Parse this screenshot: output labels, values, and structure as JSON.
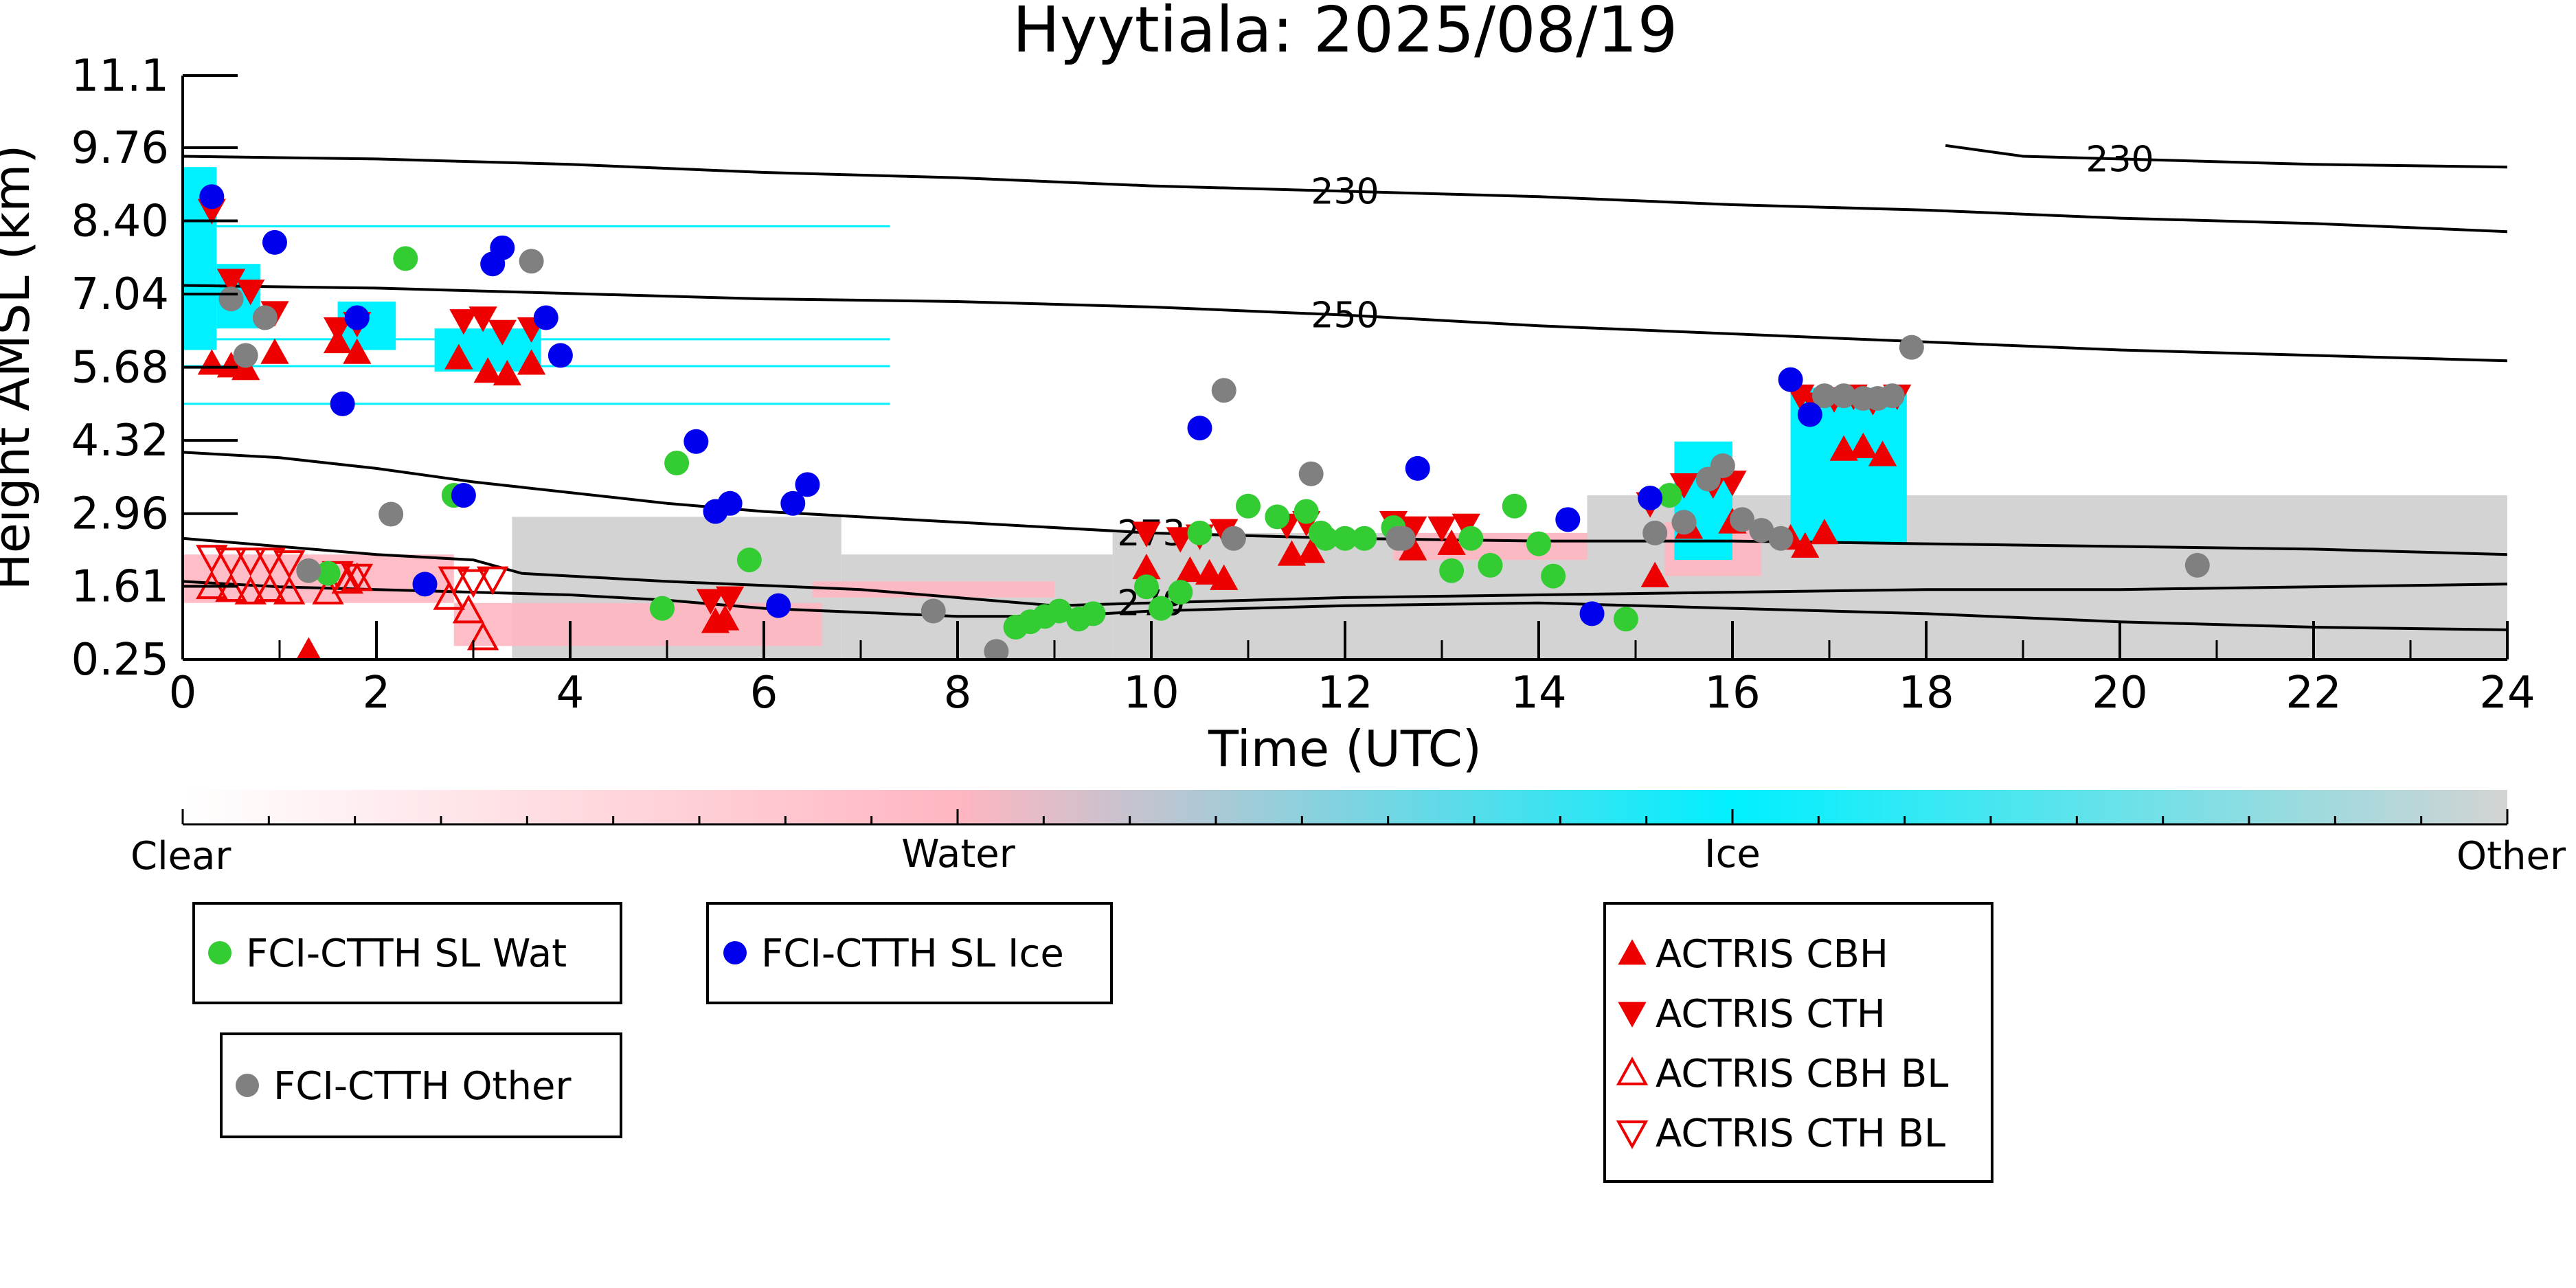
{
  "chart_data": {
    "type": "scatter",
    "title": "Hyytiala: 2025/08/19",
    "xlabel": "Time (UTC)",
    "ylabel": "Height AMSL (km)",
    "xlim": [
      0,
      24
    ],
    "ylim": [
      0.25,
      11.1
    ],
    "x_ticks": [
      "0",
      "2",
      "4",
      "6",
      "8",
      "10",
      "12",
      "14",
      "16",
      "18",
      "20",
      "22",
      "24"
    ],
    "y_ticks": [
      "0.25",
      "1.61",
      "2.96",
      "4.32",
      "5.68",
      "7.04",
      "8.40",
      "9.76",
      "11.1"
    ],
    "y_tick_values": [
      0.25,
      1.61,
      2.96,
      4.32,
      5.68,
      7.04,
      8.4,
      9.76,
      11.1
    ],
    "colorbar": {
      "labels": [
        "Clear",
        "Water",
        "Ice",
        "Other"
      ],
      "colors": [
        "#ffffff",
        "#ffb6c1",
        "#00f0ff",
        "#d3d3d3"
      ]
    },
    "contours": [
      {
        "label": "230",
        "points": [
          [
            0,
            9.6
          ],
          [
            2,
            9.55
          ],
          [
            4,
            9.45
          ],
          [
            6,
            9.3
          ],
          [
            8,
            9.2
          ],
          [
            10,
            9.05
          ],
          [
            12,
            8.95
          ],
          [
            14,
            8.85
          ],
          [
            16,
            8.7
          ],
          [
            18,
            8.6
          ],
          [
            20,
            8.45
          ],
          [
            22,
            8.35
          ],
          [
            24,
            8.2
          ]
        ]
      },
      {
        "label": "230",
        "points": [
          [
            18.2,
            9.8
          ],
          [
            19,
            9.6
          ],
          [
            20,
            9.55
          ],
          [
            22,
            9.45
          ],
          [
            24,
            9.4
          ]
        ]
      },
      {
        "label": "250",
        "points": [
          [
            0,
            7.2
          ],
          [
            2,
            7.15
          ],
          [
            4,
            7.05
          ],
          [
            6,
            6.95
          ],
          [
            8,
            6.9
          ],
          [
            10,
            6.8
          ],
          [
            12,
            6.65
          ],
          [
            14,
            6.45
          ],
          [
            16,
            6.3
          ],
          [
            18,
            6.15
          ],
          [
            20,
            6.0
          ],
          [
            22,
            5.9
          ],
          [
            24,
            5.8
          ]
        ]
      },
      {
        "label": "273",
        "points": [
          [
            0,
            4.1
          ],
          [
            1,
            4.0
          ],
          [
            2,
            3.8
          ],
          [
            3,
            3.55
          ],
          [
            4,
            3.35
          ],
          [
            5,
            3.15
          ],
          [
            6,
            3.0
          ],
          [
            8,
            2.8
          ],
          [
            10,
            2.6
          ],
          [
            12,
            2.5
          ],
          [
            14,
            2.45
          ],
          [
            16,
            2.45
          ],
          [
            18,
            2.4
          ],
          [
            20,
            2.35
          ],
          [
            22,
            2.3
          ],
          [
            24,
            2.2
          ]
        ]
      },
      {
        "label": "279",
        "points": [
          [
            0,
            2.5
          ],
          [
            1,
            2.35
          ],
          [
            2,
            2.2
          ],
          [
            3,
            2.1
          ],
          [
            3.5,
            1.85
          ],
          [
            5,
            1.7
          ],
          [
            7,
            1.55
          ],
          [
            9,
            1.25
          ],
          [
            10,
            1.3
          ],
          [
            12,
            1.4
          ],
          [
            14,
            1.45
          ],
          [
            16,
            1.5
          ],
          [
            18,
            1.55
          ],
          [
            20,
            1.55
          ],
          [
            22,
            1.6
          ],
          [
            24,
            1.65
          ]
        ]
      },
      {
        "label": "",
        "points": [
          [
            0,
            1.7
          ],
          [
            1,
            1.6
          ],
          [
            2,
            1.55
          ],
          [
            3,
            1.5
          ],
          [
            4,
            1.45
          ],
          [
            5,
            1.35
          ],
          [
            6,
            1.2
          ],
          [
            8,
            1.05
          ],
          [
            9,
            1.05
          ],
          [
            10,
            1.15
          ],
          [
            12,
            1.25
          ],
          [
            14,
            1.3
          ],
          [
            16,
            1.2
          ],
          [
            18,
            1.1
          ],
          [
            20,
            0.95
          ],
          [
            22,
            0.85
          ],
          [
            24,
            0.8
          ]
        ]
      }
    ],
    "series": [
      {
        "name": "FCI-CTTH SL Wat",
        "marker": "circle",
        "color": "#33cc33",
        "x": [
          2.3,
          1.5,
          2.8,
          5.1,
          5.85,
          4.95,
          8.6,
          8.75,
          8.9,
          9.05,
          9.25,
          9.4,
          9.95,
          10.1,
          10.3,
          11.0,
          11.3,
          11.6,
          11.75,
          12.0,
          12.2,
          13.1,
          13.3,
          13.5,
          13.75,
          14.0,
          14.15,
          14.9,
          15.35,
          10.5,
          11.8,
          12.5
        ],
        "y": [
          7.7,
          1.85,
          3.3,
          3.9,
          2.1,
          1.2,
          0.85,
          0.95,
          1.05,
          1.15,
          1.0,
          1.1,
          1.6,
          1.2,
          1.5,
          3.1,
          2.9,
          3.0,
          2.6,
          2.5,
          2.5,
          1.9,
          2.5,
          2.0,
          3.1,
          2.4,
          1.8,
          1.0,
          3.3,
          2.6,
          2.5,
          2.7
        ]
      },
      {
        "name": "FCI-CTTH SL Ice",
        "marker": "circle",
        "color": "#0000ee",
        "x": [
          0.3,
          0.95,
          1.65,
          1.8,
          3.2,
          3.3,
          3.75,
          3.9,
          2.9,
          2.5,
          5.3,
          5.5,
          5.65,
          6.3,
          6.45,
          6.15,
          10.5,
          12.75,
          14.3,
          14.55,
          15.15,
          16.6,
          16.8
        ],
        "y": [
          8.85,
          8.0,
          5.0,
          6.6,
          7.6,
          7.9,
          6.6,
          5.9,
          3.3,
          1.65,
          4.3,
          3.0,
          3.15,
          3.15,
          3.5,
          1.25,
          4.55,
          3.8,
          2.85,
          1.1,
          3.25,
          5.45,
          4.8
        ],
        "note_free": true
      },
      {
        "name": "FCI-CTTH Other",
        "marker": "circle",
        "color": "#808080",
        "x": [
          0.5,
          0.85,
          0.65,
          1.3,
          2.15,
          3.6,
          7.75,
          8.4,
          10.75,
          10.85,
          11.65,
          12.55,
          12.6,
          15.2,
          15.5,
          15.75,
          15.9,
          16.1,
          16.3,
          16.5,
          16.95,
          17.15,
          17.35,
          17.5,
          17.65,
          17.85,
          20.8
        ],
        "y": [
          6.95,
          6.6,
          5.9,
          1.9,
          2.95,
          7.65,
          1.15,
          0.4,
          5.25,
          2.5,
          3.7,
          2.5,
          2.5,
          2.6,
          2.8,
          3.6,
          3.85,
          2.85,
          2.65,
          2.5,
          5.15,
          5.15,
          5.1,
          5.1,
          5.15,
          6.05,
          2.0
        ]
      },
      {
        "name": "ACTRIS CBH",
        "marker": "triangle-up",
        "color": "#ee0000",
        "x": [
          0.3,
          0.5,
          0.65,
          0.95,
          1.6,
          1.8,
          2.85,
          3.15,
          3.35,
          3.6,
          5.5,
          5.6,
          9.95,
          10.4,
          10.6,
          10.75,
          11.45,
          11.65,
          12.7,
          13.1,
          15.2,
          15.55,
          16.0,
          16.6,
          16.75,
          16.95,
          17.15,
          17.35,
          17.55,
          1.3
        ],
        "y": [
          5.75,
          5.7,
          5.65,
          5.95,
          6.15,
          5.95,
          5.85,
          5.6,
          5.55,
          5.75,
          0.95,
          1.0,
          1.95,
          1.9,
          1.85,
          1.75,
          2.2,
          2.25,
          2.3,
          2.4,
          1.8,
          2.7,
          2.8,
          2.5,
          2.35,
          2.6,
          4.15,
          4.2,
          4.05,
          0.4
        ]
      },
      {
        "name": "ACTRIS CTH",
        "marker": "triangle-down",
        "color": "#ee0000",
        "x": [
          0.3,
          0.5,
          0.7,
          0.95,
          1.6,
          1.8,
          2.9,
          3.1,
          3.3,
          3.6,
          5.45,
          5.65,
          9.95,
          10.3,
          10.5,
          10.75,
          11.4,
          11.6,
          12.5,
          12.7,
          13.0,
          13.25,
          15.15,
          15.5,
          15.8,
          16.0,
          16.7,
          16.85,
          17.05,
          17.25,
          17.45,
          17.7
        ],
        "y": [
          8.6,
          7.3,
          7.1,
          6.7,
          6.4,
          6.5,
          6.55,
          6.6,
          6.35,
          6.4,
          1.35,
          1.4,
          2.6,
          2.5,
          2.55,
          2.65,
          2.75,
          2.8,
          2.8,
          2.7,
          2.7,
          2.75,
          3.15,
          3.5,
          3.5,
          3.55,
          5.15,
          5.0,
          5.1,
          5.15,
          5.05,
          5.15
        ]
      },
      {
        "name": "ACTRIS CBH BL",
        "marker": "triangle-up-open",
        "color": "#ee0000",
        "x": [
          0.3,
          0.5,
          0.7,
          0.9,
          1.1,
          1.5,
          1.7,
          1.8,
          2.75,
          2.95,
          3.1
        ],
        "y": [
          1.6,
          1.55,
          1.5,
          1.55,
          1.5,
          1.5,
          1.7,
          1.75,
          1.4,
          1.15,
          0.65
        ]
      },
      {
        "name": "ACTRIS CTH BL",
        "marker": "triangle-down-open",
        "color": "#ee0000",
        "x": [
          0.3,
          0.5,
          0.7,
          0.9,
          1.1,
          1.6,
          1.8,
          2.8,
          3.0,
          3.2
        ],
        "y": [
          2.15,
          2.1,
          2.1,
          2.1,
          2.05,
          1.85,
          1.8,
          1.75,
          1.7,
          1.75
        ]
      }
    ]
  },
  "legends": [
    {
      "items": [
        {
          "label": "FCI-CTTH SL Wat",
          "marker": "circle",
          "color": "#33cc33"
        }
      ]
    },
    {
      "items": [
        {
          "label": "FCI-CTTH SL Ice",
          "marker": "circle",
          "color": "#0000ee"
        }
      ]
    },
    {
      "items": [
        {
          "label": "FCI-CTTH Other",
          "marker": "circle",
          "color": "#808080"
        }
      ]
    },
    {
      "items": [
        {
          "label": "ACTRIS CBH",
          "marker": "triangle-up",
          "color": "#ee0000"
        },
        {
          "label": "ACTRIS CTH",
          "marker": "triangle-down",
          "color": "#ee0000"
        },
        {
          "label": "ACTRIS CBH BL",
          "marker": "triangle-up-open",
          "color": "#ee0000"
        },
        {
          "label": "ACTRIS CTH BL",
          "marker": "triangle-down-open",
          "color": "#ee0000"
        }
      ]
    }
  ]
}
